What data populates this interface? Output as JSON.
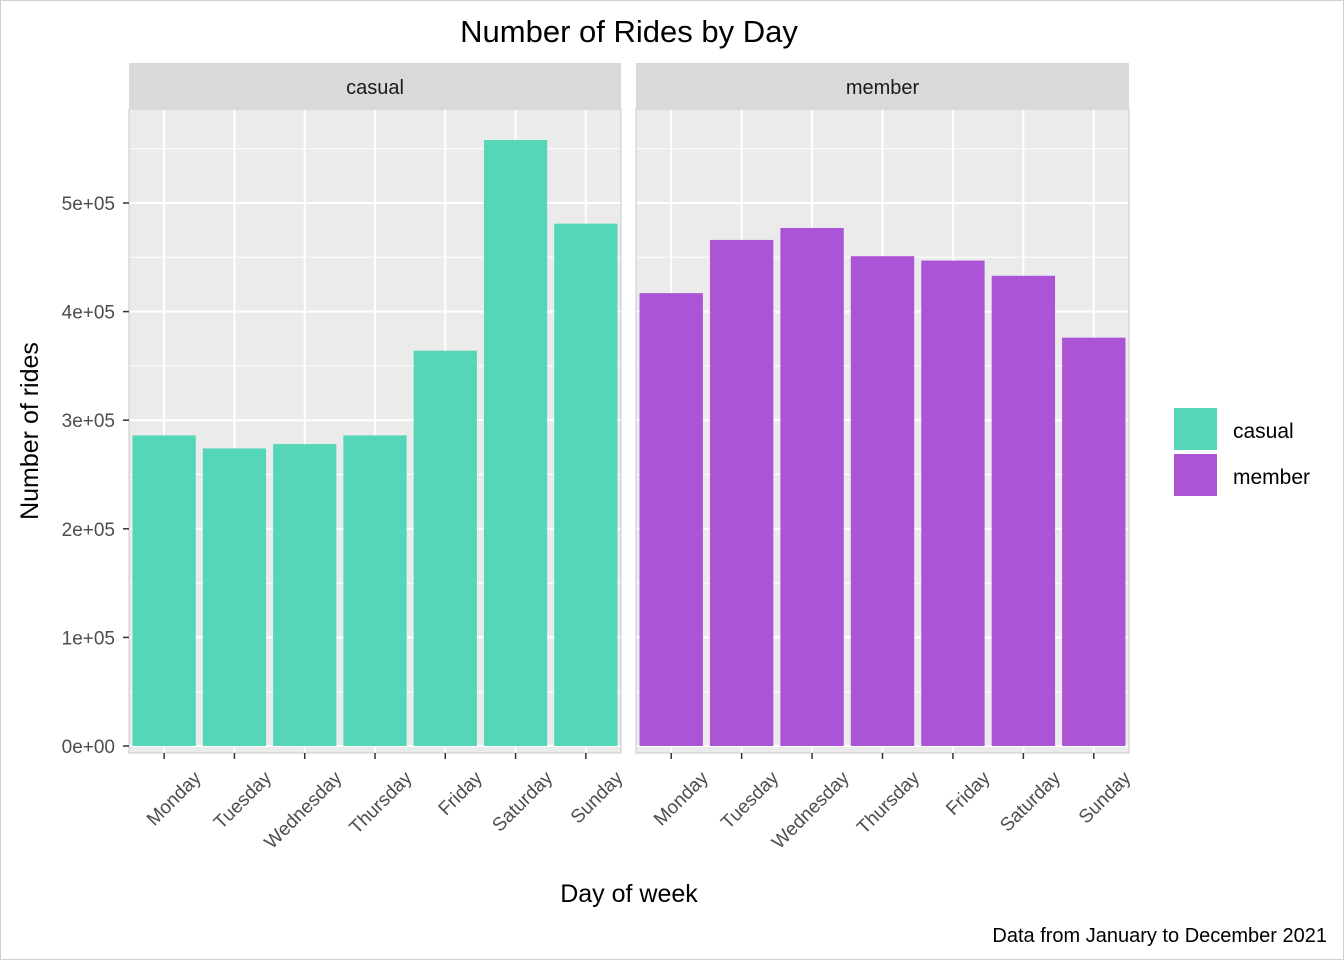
{
  "chart_data": {
    "type": "bar",
    "title": "Number of Rides by Day",
    "xlabel": "Day of week",
    "ylabel": "Number of rides",
    "caption": "Data from January to December 2021",
    "categories": [
      "Monday",
      "Tuesday",
      "Wednesday",
      "Thursday",
      "Friday",
      "Saturday",
      "Sunday"
    ],
    "y_tick_values": [
      0,
      100000,
      200000,
      300000,
      400000,
      500000
    ],
    "y_tick_labels": [
      "0e+00",
      "1e+05",
      "2e+05",
      "3e+05",
      "4e+05",
      "5e+05"
    ],
    "ylim": [
      0,
      585000
    ],
    "facets": [
      "casual",
      "member"
    ],
    "series": [
      {
        "name": "casual",
        "color": "#55d6b8",
        "values": [
          286000,
          274000,
          278000,
          286000,
          364000,
          558000,
          481000
        ]
      },
      {
        "name": "member",
        "color": "#ab54d6",
        "values": [
          417000,
          466000,
          477000,
          451000,
          447000,
          433000,
          376000
        ]
      }
    ],
    "grid": true,
    "legend_position": "right"
  }
}
